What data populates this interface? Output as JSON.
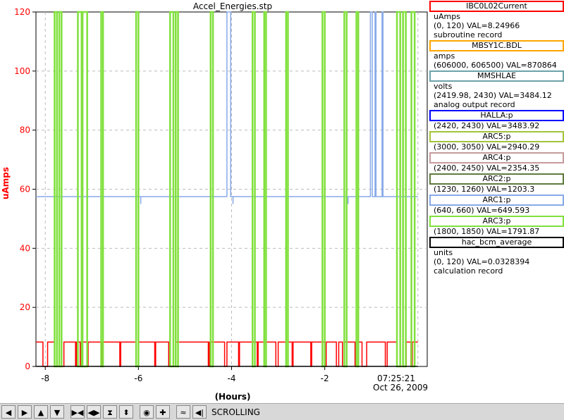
{
  "chart_data": {
    "type": "line",
    "title": "Accel_Energies.stp",
    "ylabel": "uAmps",
    "xlabel": "(Hours)",
    "ylim": [
      0,
      120
    ],
    "xlim": [
      -8.2,
      0.2
    ],
    "y_ticks": [
      "0",
      "20",
      "40",
      "60",
      "80",
      "100",
      "120"
    ],
    "x_ticks": [
      "-8",
      "-6",
      "-4",
      "-2"
    ],
    "x_tick_values": [
      -8,
      -6,
      -4,
      -2
    ],
    "end_time": "07:25:21",
    "end_date": "Oct 26, 2009",
    "grid": true,
    "series": [
      {
        "name": "IBC0L02Current",
        "color": "#ff0000",
        "baseline": 8.25,
        "dropouts": [
          [
            -8.05,
            -7.95
          ],
          [
            -7.8,
            -7.6
          ],
          [
            -7.35,
            -7.33
          ],
          [
            -7.25,
            -7.2
          ],
          [
            -7.1,
            -7.08
          ],
          [
            -6.8,
            -6.78
          ],
          [
            -6.4,
            -6.38
          ],
          [
            -6.05,
            -6.0
          ],
          [
            -5.65,
            -5.63
          ],
          [
            -5.35,
            -5.2
          ],
          [
            -4.5,
            -4.48
          ],
          [
            -4.15,
            -4.1
          ],
          [
            -3.85,
            -3.83
          ],
          [
            -3.45,
            -3.43
          ],
          [
            -3.05,
            -3.0
          ],
          [
            -2.7,
            -2.68
          ],
          [
            -2.3,
            -2.28
          ],
          [
            -2.0,
            -1.97
          ],
          [
            -1.75,
            -1.7
          ],
          [
            -1.62,
            -1.58
          ],
          [
            -1.35,
            -1.33
          ],
          [
            -1.2,
            -1.1
          ],
          [
            -0.7,
            -0.66
          ],
          [
            -0.45,
            -0.25
          ],
          [
            -0.15,
            -0.12
          ]
        ]
      },
      {
        "name": "ARC1:p",
        "color": "#87a9e8",
        "baseline": 57.5,
        "spikes": [
          [
            -4.1,
            -4.02
          ],
          [
            -1.02,
            -0.98
          ],
          [
            -0.92,
            -0.9
          ],
          [
            -0.77,
            -0.75
          ]
        ],
        "dips": [
          -5.95,
          -3.97,
          -1.5
        ]
      },
      {
        "name": "ARC3:p",
        "color": "#80e03c",
        "bars": [
          [
            -7.8,
            -7.75
          ],
          [
            -7.7,
            -7.65
          ],
          [
            -7.3,
            -7.22
          ],
          [
            -7.2,
            -7.1
          ],
          [
            -6.8,
            -6.76
          ],
          [
            -6.05,
            -6.0
          ],
          [
            -5.32,
            -5.25
          ],
          [
            -5.2,
            -5.15
          ],
          [
            -4.45,
            -4.4
          ],
          [
            -3.55,
            -3.5
          ],
          [
            -3.3,
            -3.26
          ],
          [
            -2.83,
            -2.79
          ],
          [
            -2.05,
            -2.0
          ],
          [
            -1.58,
            -1.53
          ],
          [
            -1.32,
            -1.28
          ],
          [
            -0.45,
            -0.38
          ],
          [
            -0.32,
            -0.26
          ],
          [
            -0.14,
            -0.07
          ]
        ]
      },
      {
        "name": "hac_bcm_average",
        "color": "#000000",
        "baseline": 0.03
      }
    ]
  },
  "legend": [
    {
      "name": "IBC0L02Current",
      "color": "#ff0000",
      "lines": [
        "uAmps",
        "(0, 120) VAL=8.24966",
        "subroutine record"
      ]
    },
    {
      "name": "MBSY1C.BDL",
      "color": "#ffa500",
      "lines": [
        "amps",
        "(606000, 606500) VAL=870864"
      ]
    },
    {
      "name": "MMSHLAE",
      "color": "#6ba3a8",
      "lines": [
        "volts",
        "(2419.98, 2430) VAL=3484.12",
        "analog output record"
      ]
    },
    {
      "name": "HALLA:p",
      "color": "#0000ff",
      "lines": [
        "(2420, 2430) VAL=3483.92"
      ]
    },
    {
      "name": "ARC5:p",
      "color": "#a3c43a",
      "lines": [
        "(3000, 3050) VAL=2940.29"
      ]
    },
    {
      "name": "ARC4:p",
      "color": "#c79b9b",
      "lines": [
        "(2400, 2450) VAL=2354.35"
      ]
    },
    {
      "name": "ARC2:p",
      "color": "#5e7a3d",
      "lines": [
        "(1230, 1260) VAL=1203.3"
      ]
    },
    {
      "name": "ARC1:p",
      "color": "#87a9e8",
      "lines": [
        "(640, 660) VAL=649.593"
      ]
    },
    {
      "name": "ARC3:p",
      "color": "#80e03c",
      "lines": [
        "(1800, 1850) VAL=1791.87"
      ]
    },
    {
      "name": "hac_bcm_average",
      "color": "#000000",
      "lines": [
        "units",
        "(0, 120) VAL=0.0328394",
        "calculation record"
      ]
    }
  ],
  "toolbar": {
    "buttons": [
      {
        "name": "scroll-left-button",
        "glyph": "◀"
      },
      {
        "name": "scroll-right-button",
        "glyph": "▶"
      },
      {
        "name": "scroll-up-button",
        "glyph": "▲"
      },
      {
        "name": "scroll-down-button",
        "glyph": "▼"
      },
      {
        "name": "zoom-in-x-button",
        "glyph": "▶◀"
      },
      {
        "name": "zoom-out-x-button",
        "glyph": "◀▶"
      },
      {
        "name": "zoom-in-y-button",
        "glyph": "⧗"
      },
      {
        "name": "zoom-out-y-button",
        "glyph": "⬍"
      },
      {
        "name": "auto-scale-button",
        "glyph": "◉"
      },
      {
        "name": "add-trace-button",
        "glyph": "✚"
      },
      {
        "name": "config-button",
        "glyph": "≈"
      },
      {
        "name": "stop-scroll-button",
        "glyph": "◀|"
      }
    ],
    "status": "SCROLLING"
  }
}
